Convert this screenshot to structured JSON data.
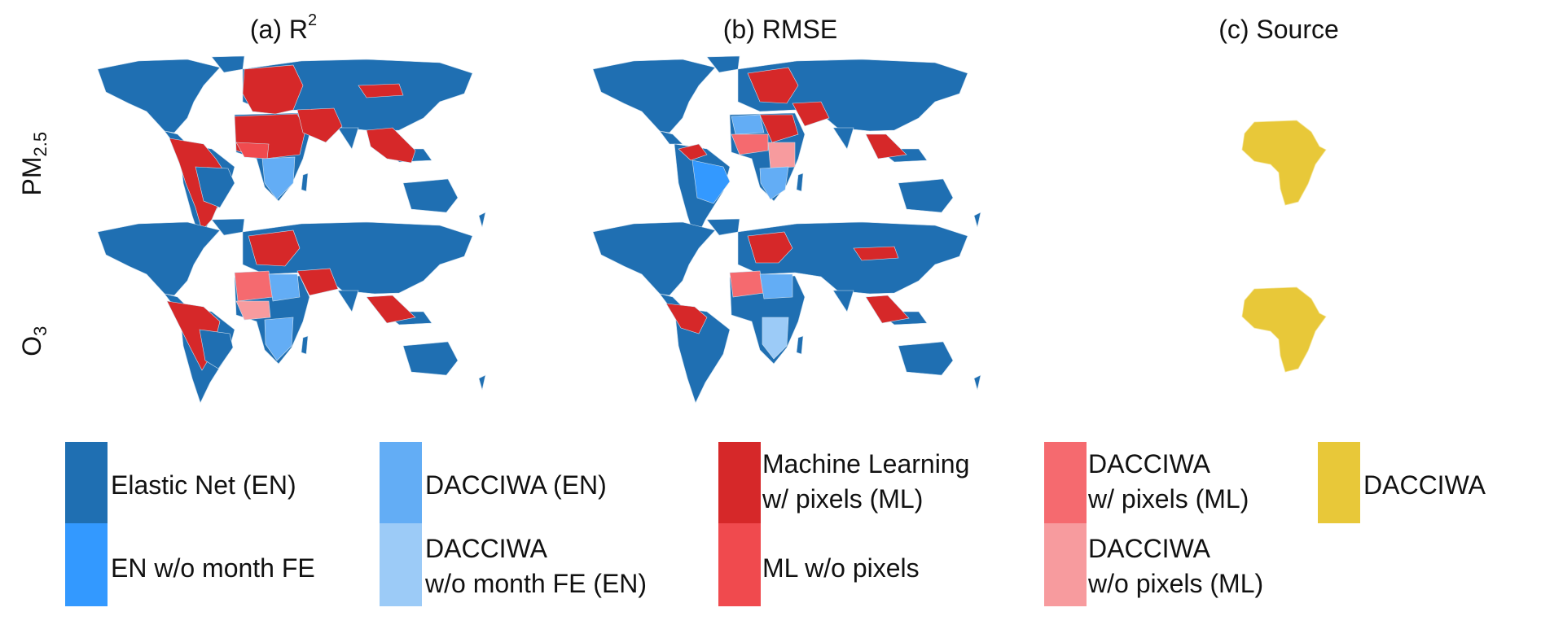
{
  "titles": {
    "col_a_prefix": "(a) R",
    "col_a_sup": "2",
    "col_b": "(b) RMSE",
    "col_c": "(c) Source"
  },
  "rows": {
    "pm_main": "PM",
    "pm_sub": "2.5",
    "o3_main": "O",
    "o3_sub": "3"
  },
  "colors": {
    "elastic_net": "#1f6fb2",
    "en_wo_month": "#3399ff",
    "dacciwa_en": "#63adf5",
    "dacciwa_wo_month_en": "#9ccbf7",
    "ml_pixels": "#d62829",
    "ml_wo_pixels": "#f04a4e",
    "dacciwa_ml_pixels": "#f56a6f",
    "dacciwa_wo_pixels_ml": "#f79b9e",
    "dacciwa": "#e8c839",
    "country_border": "#cfe0ee"
  },
  "legend": {
    "elastic_net": "Elastic Net (EN)",
    "en_wo_month": "EN w/o month FE",
    "dacciwa_en": "DACCIWA (EN)",
    "dacciwa_wo_month_l1": "DACCIWA",
    "dacciwa_wo_month_l2": "w/o month FE (EN)",
    "ml_pixels_l1": "Machine Learning",
    "ml_pixels_l2": "w/ pixels (ML)",
    "ml_wo_pixels": "ML w/o pixels",
    "dacciwa_ml_l1": "DACCIWA",
    "dacciwa_ml_l2": "w/ pixels (ML)",
    "dacciwa_wo_pix_l1": "DACCIWA",
    "dacciwa_wo_pix_l2": "w/o pixels (ML)",
    "dacciwa": "DACCIWA"
  }
}
